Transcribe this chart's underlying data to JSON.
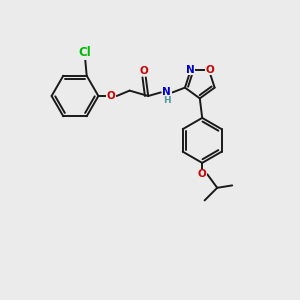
{
  "bg_color": "#ebebeb",
  "bond_color": "#1a1a1a",
  "atom_colors": {
    "Cl": "#00bb00",
    "O": "#cc0000",
    "N": "#0000cc",
    "H": "#559999",
    "C": "#1a1a1a"
  }
}
